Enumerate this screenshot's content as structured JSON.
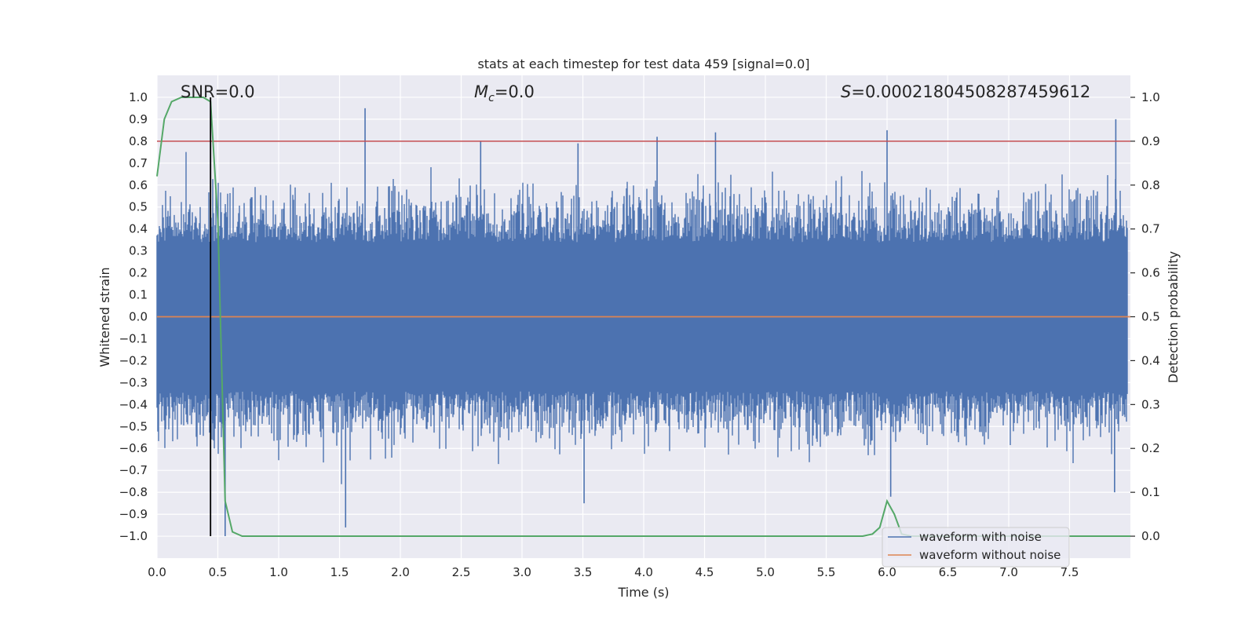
{
  "chart_data": {
    "type": "line",
    "title": "stats at each timestep for test data 459 [signal=0.0]",
    "xlabel": "Time (s)",
    "ylabel": "Whitened strain",
    "y2label": "Detection probability",
    "xlim": [
      0.0,
      8.0
    ],
    "ylim": [
      -1.1,
      1.1
    ],
    "y2lim": [
      -0.05,
      1.05
    ],
    "x_ticks": [
      0.0,
      0.5,
      1.0,
      1.5,
      2.0,
      2.5,
      3.0,
      3.5,
      4.0,
      4.5,
      5.0,
      5.5,
      6.0,
      6.5,
      7.0,
      7.5
    ],
    "x_tick_labels": [
      "0.0",
      "0.5",
      "1.0",
      "1.5",
      "2.0",
      "2.5",
      "3.0",
      "3.5",
      "4.0",
      "4.5",
      "5.0",
      "5.5",
      "6.0",
      "6.5",
      "7.0",
      "7.5"
    ],
    "y_ticks": [
      -1.0,
      -0.9,
      -0.8,
      -0.7,
      -0.6,
      -0.5,
      -0.4,
      -0.3,
      -0.2,
      -0.1,
      0.0,
      0.1,
      0.2,
      0.3,
      0.4,
      0.5,
      0.6,
      0.7,
      0.8,
      0.9,
      1.0
    ],
    "y_tick_labels": [
      "−1.0",
      "−0.9",
      "−0.8",
      "−0.7",
      "−0.6",
      "−0.5",
      "−0.4",
      "−0.3",
      "−0.2",
      "−0.1",
      "0.0",
      "0.1",
      "0.2",
      "0.3",
      "0.4",
      "0.5",
      "0.6",
      "0.7",
      "0.8",
      "0.9",
      "1.0"
    ],
    "y2_ticks": [
      0.0,
      0.1,
      0.2,
      0.3,
      0.4,
      0.5,
      0.6,
      0.7,
      0.8,
      0.9,
      1.0
    ],
    "y2_tick_labels": [
      "0.0",
      "0.1",
      "0.2",
      "0.3",
      "0.4",
      "0.5",
      "0.6",
      "0.7",
      "0.8",
      "0.9",
      "1.0"
    ],
    "annotations": {
      "snr": "SNR=0.0",
      "mc_symbol": "M",
      "mc_sub": "c",
      "mc_value": "=0.0",
      "s_symbol": "S",
      "s_value": "=0.00021804508287459612"
    },
    "series": [
      {
        "name": "waveform with noise",
        "color": "#4c72b0",
        "kind": "noise",
        "core_envelope": [
          -0.3,
          0.3
        ],
        "extreme_peaks": [
          [
            1.71,
            0.95
          ],
          [
            7.88,
            0.9
          ],
          [
            6.0,
            0.85
          ],
          [
            4.59,
            0.84
          ],
          [
            4.11,
            0.82
          ],
          [
            2.66,
            0.8
          ],
          [
            3.46,
            0.79
          ],
          [
            1.55,
            -0.96
          ],
          [
            0.56,
            -1.0
          ],
          [
            3.51,
            -0.85
          ],
          [
            6.03,
            -0.82
          ],
          [
            7.87,
            -0.8
          ]
        ]
      },
      {
        "name": "waveform without noise",
        "color": "#dd8452",
        "x": [
          0.0,
          8.0
        ],
        "y": [
          0.0,
          0.0
        ]
      },
      {
        "name": "detection probability",
        "color": "#55a868",
        "axis": "right",
        "x": [
          0.0,
          0.06,
          0.12,
          0.2,
          0.3,
          0.38,
          0.44,
          0.5,
          0.56,
          0.62,
          0.7,
          1.0,
          5.8,
          5.88,
          5.94,
          6.0,
          6.06,
          6.12,
          6.2,
          6.5,
          8.0
        ],
        "y": [
          0.82,
          0.95,
          0.99,
          1.0,
          1.0,
          1.0,
          0.99,
          0.72,
          0.08,
          0.01,
          0.0,
          0.0,
          0.0,
          0.005,
          0.02,
          0.08,
          0.05,
          0.005,
          0.0,
          0.0,
          0.0
        ]
      },
      {
        "name": "threshold",
        "color": "#c44e52",
        "axis": "right",
        "x": [
          0.0,
          8.0
        ],
        "y": [
          0.9,
          0.9
        ]
      },
      {
        "name": "event marker",
        "color": "#000000",
        "kind": "vline",
        "x": 0.44,
        "y_range": [
          -1.0,
          1.0
        ]
      }
    ],
    "legend": {
      "position": "lower-right",
      "entries": [
        "waveform with noise",
        "waveform without noise"
      ]
    },
    "grid": true
  }
}
